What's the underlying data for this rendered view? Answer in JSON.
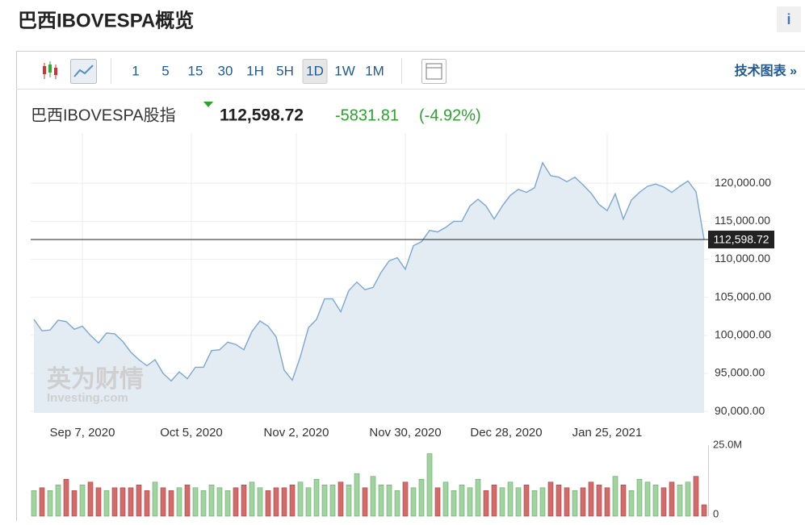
{
  "header": {
    "title": "巴西IBOVESPA概览",
    "info": "i"
  },
  "toolbar": {
    "intervals": [
      "1",
      "5",
      "15",
      "30",
      "1H",
      "5H",
      "1D",
      "1W",
      "1M"
    ],
    "active": 6,
    "link": "技术图表 »"
  },
  "quote": {
    "name": "巴西IBOVESPA股指",
    "price": "112,598.72",
    "change": "-5831.81",
    "change_pct": "(-4.92%)"
  },
  "chart_data": {
    "type": "area",
    "watermark": "英为财情",
    "watermark_sub": "Investing.com",
    "color": "#7ba7d1",
    "fill": "#e3ecf3",
    "values": [
      102100,
      100600,
      100700,
      102000,
      101800,
      100800,
      101200,
      100000,
      99000,
      100300,
      100200,
      99200,
      97800,
      96800,
      96000,
      96800,
      95000,
      94000,
      95200,
      94300,
      95800,
      95800,
      98000,
      98100,
      99100,
      98800,
      98100,
      100500,
      101900,
      101200,
      99800,
      95400,
      94100,
      97200,
      101000,
      102100,
      104800,
      104800,
      103100,
      105900,
      107000,
      106000,
      106300,
      108300,
      109800,
      110200,
      108700,
      111800,
      112300,
      113800,
      113600,
      114200,
      115000,
      115000,
      117000,
      117900,
      117000,
      115300,
      117000,
      118400,
      119200,
      118800,
      119400,
      122700,
      121000,
      120800,
      120200,
      120800,
      119800,
      118700,
      117200,
      116400,
      118600,
      115300,
      117800,
      118800,
      119600,
      119900,
      119500,
      118800,
      119600,
      120300,
      118900,
      112598.72
    ],
    "last_label": "112,598.72",
    "xlim": [
      -0.4,
      83.5
    ],
    "xticks": [
      {
        "value": 6,
        "label": "Sep 7, 2020"
      },
      {
        "value": 19.5,
        "label": "Oct 5, 2020"
      },
      {
        "value": 32.5,
        "label": "Nov 2, 2020"
      },
      {
        "value": 46,
        "label": "Nov 30, 2020"
      },
      {
        "value": 58.5,
        "label": "Dec 28, 2020"
      },
      {
        "value": 71,
        "label": "Jan 25, 2021"
      }
    ],
    "ylim": [
      89800,
      126600
    ],
    "yticks": [
      {
        "value": 90000,
        "label": "90,000.00"
      },
      {
        "value": 95000,
        "label": "95,000.00"
      },
      {
        "value": 100000,
        "label": "100,000.00"
      },
      {
        "value": 105000,
        "label": "105,000.00"
      },
      {
        "value": 110000,
        "label": "110,000.00"
      },
      {
        "value": 115000,
        "label": "115,000.00"
      },
      {
        "value": 120000,
        "label": "120,000.00"
      }
    ],
    "grid": true,
    "volume": {
      "values": [
        9000000,
        10000000,
        9000000,
        11000000,
        13000000,
        9000000,
        11000000,
        12000000,
        10000000,
        9000000,
        10000000,
        10000000,
        10000000,
        11000000,
        9000000,
        12000000,
        10000000,
        9000000,
        10000000,
        11000000,
        10000000,
        9000000,
        11000000,
        10000000,
        9000000,
        10000000,
        11000000,
        12000000,
        10000000,
        9000000,
        10000000,
        10000000,
        11000000,
        12000000,
        10000000,
        13000000,
        11000000,
        11000000,
        12000000,
        11000000,
        15000000,
        10000000,
        14000000,
        11000000,
        11000000,
        9000000,
        12000000,
        10000000,
        13000000,
        22000000,
        10000000,
        12000000,
        9000000,
        11000000,
        10000000,
        13000000,
        9000000,
        11000000,
        10000000,
        12000000,
        10000000,
        11000000,
        9000000,
        10000000,
        12000000,
        11000000,
        10000000,
        9000000,
        10000000,
        12000000,
        11000000,
        10000000,
        14000000,
        11000000,
        9000000,
        13000000,
        12000000,
        11000000,
        10000000,
        12000000,
        11000000,
        12000000,
        14000000,
        4000000
      ],
      "up_color": "#9fd39f",
      "down_color": "#d46a6a",
      "ylim": [
        0,
        25000000
      ],
      "yticks": [
        {
          "value": 25000000,
          "label": "25.0M"
        },
        0
      ]
    }
  }
}
